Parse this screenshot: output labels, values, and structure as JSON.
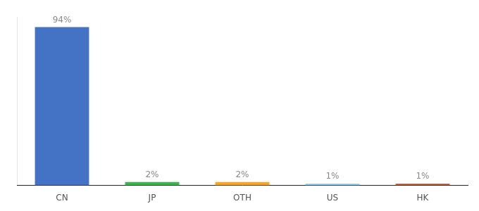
{
  "chart_data": {
    "type": "bar",
    "categories": [
      "CN",
      "JP",
      "OTH",
      "US",
      "HK"
    ],
    "values": [
      94,
      2,
      2,
      1,
      1
    ],
    "value_labels": [
      "94%",
      "2%",
      "2%",
      "1%",
      "1%"
    ],
    "colors": [
      "#4472C4",
      "#3CB54A",
      "#F5A623",
      "#87CEEB",
      "#C0522A"
    ],
    "ylim": [
      0,
      100
    ],
    "data_labels": true,
    "tick_labels": "x",
    "grid": false
  }
}
